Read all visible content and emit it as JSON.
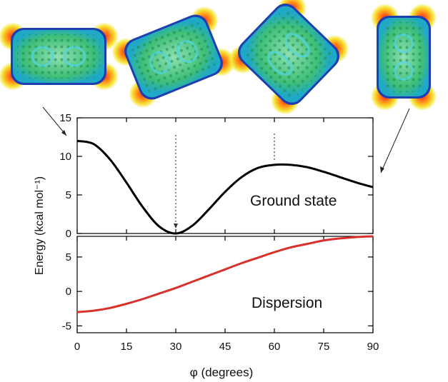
{
  "chart_data": [
    {
      "type": "line",
      "label": "Ground state",
      "ylim": [
        0,
        15
      ],
      "yticks": [
        0,
        5,
        10,
        15
      ],
      "color": "#000000",
      "x": [
        0,
        5,
        10,
        15,
        20,
        25,
        30,
        35,
        40,
        45,
        50,
        55,
        60,
        65,
        70,
        75,
        80,
        85,
        90
      ],
      "y": [
        12.0,
        11.6,
        9.6,
        6.6,
        3.4,
        0.9,
        0.0,
        1.0,
        3.1,
        5.4,
        7.3,
        8.5,
        8.9,
        8.9,
        8.6,
        8.0,
        7.3,
        6.6,
        6.0
      ]
    },
    {
      "type": "line",
      "label": "Dispersion",
      "ylim": [
        -6,
        8
      ],
      "yticks": [
        -5,
        0,
        5
      ],
      "color": "#d9302a",
      "x": [
        0,
        5,
        10,
        15,
        20,
        25,
        30,
        35,
        40,
        45,
        50,
        55,
        60,
        65,
        70,
        75,
        80,
        85,
        90
      ],
      "y": [
        -3.0,
        -2.8,
        -2.4,
        -1.8,
        -1.1,
        -0.3,
        0.5,
        1.4,
        2.3,
        3.2,
        4.1,
        4.9,
        5.7,
        6.4,
        6.9,
        7.4,
        7.7,
        7.9,
        8.0
      ]
    }
  ],
  "axes": {
    "xlim": [
      0,
      90
    ],
    "xticks": [
      0,
      15,
      30,
      45,
      60,
      75,
      90
    ],
    "xlabel": "φ (degrees)",
    "ylabel": "Energy (kcal mol⁻¹)"
  },
  "molecule_angles": [
    0,
    30,
    60,
    90
  ]
}
